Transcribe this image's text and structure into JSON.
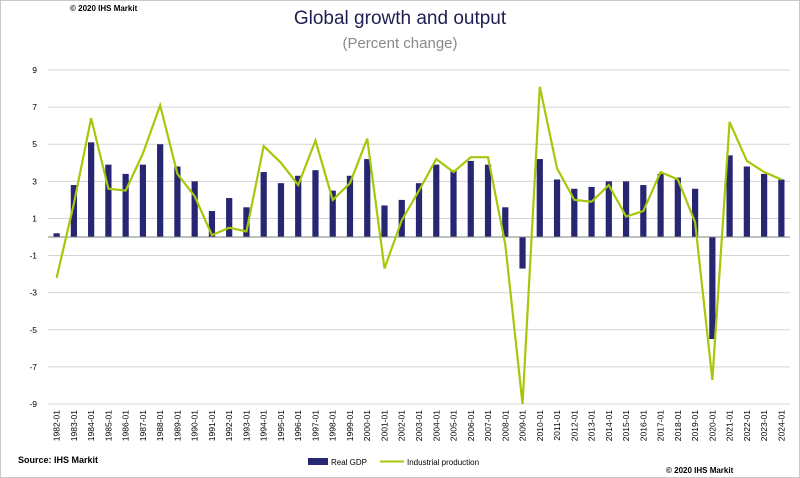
{
  "header": {
    "copyright_top": "© 2020 IHS Markit",
    "title": "Global growth and output",
    "subtitle": "(Percent change)"
  },
  "footer": {
    "source": "Source: IHS Markit",
    "copyright_bottom": "© 2020 IHS Markit"
  },
  "colors": {
    "gdp_bar": "#262673",
    "industrial_line": "#a6c80a",
    "grid": "#d4d4d4",
    "axis": "#808080"
  },
  "chart_data": {
    "type": "bar",
    "title": "Global growth and output",
    "subtitle": "(Percent change)",
    "xlabel": "",
    "ylabel": "",
    "ylim": [
      -9,
      9
    ],
    "yticks": [
      9,
      7,
      5,
      3,
      1,
      -1,
      -3,
      -5,
      -7,
      -9
    ],
    "grid": true,
    "legend_position": "bottom",
    "categories": [
      "1982-01",
      "1983-01",
      "1984-01",
      "1985-01",
      "1986-01",
      "1987-01",
      "1988-01",
      "1989-01",
      "1990-01",
      "1991-01",
      "1992-01",
      "1993-01",
      "1994-01",
      "1995-01",
      "1996-01",
      "1997-01",
      "1998-01",
      "1999-01",
      "2000-01",
      "2001-01",
      "2002-01",
      "2003-01",
      "2004-01",
      "2005-01",
      "2006-01",
      "2007-01",
      "2008-01",
      "2009-01",
      "2010-01",
      "2011-01",
      "2012-01",
      "2013-01",
      "2014-01",
      "2015-01",
      "2016-01",
      "2017-01",
      "2018-01",
      "2019-01",
      "2020-01",
      "2021-01",
      "2022-01",
      "2023-01",
      "2024-01"
    ],
    "series": [
      {
        "name": "Real GDP",
        "type": "bar",
        "values": [
          0.2,
          2.8,
          5.1,
          3.9,
          3.4,
          3.9,
          5.0,
          3.8,
          3.0,
          1.4,
          2.1,
          1.6,
          3.5,
          2.9,
          3.3,
          3.6,
          2.5,
          3.3,
          4.2,
          1.7,
          2.0,
          2.9,
          3.9,
          3.6,
          4.1,
          3.9,
          1.6,
          -1.7,
          4.2,
          3.1,
          2.6,
          2.7,
          3.0,
          3.0,
          2.8,
          3.4,
          3.2,
          2.6,
          -5.5,
          4.4,
          3.8,
          3.4,
          3.1
        ]
      },
      {
        "name": "Industrial production",
        "type": "line",
        "values": [
          -2.2,
          1.8,
          6.4,
          2.6,
          2.5,
          4.5,
          7.1,
          3.4,
          2.2,
          0.1,
          0.5,
          0.3,
          4.9,
          4.0,
          2.8,
          5.2,
          2.0,
          2.9,
          5.3,
          -1.7,
          0.9,
          2.5,
          4.2,
          3.5,
          4.3,
          4.3,
          -0.4,
          -9.0,
          8.1,
          3.7,
          2.0,
          1.9,
          2.8,
          1.1,
          1.4,
          3.5,
          3.1,
          0.8,
          -7.7,
          6.2,
          4.1,
          3.5,
          3.1
        ]
      }
    ]
  }
}
